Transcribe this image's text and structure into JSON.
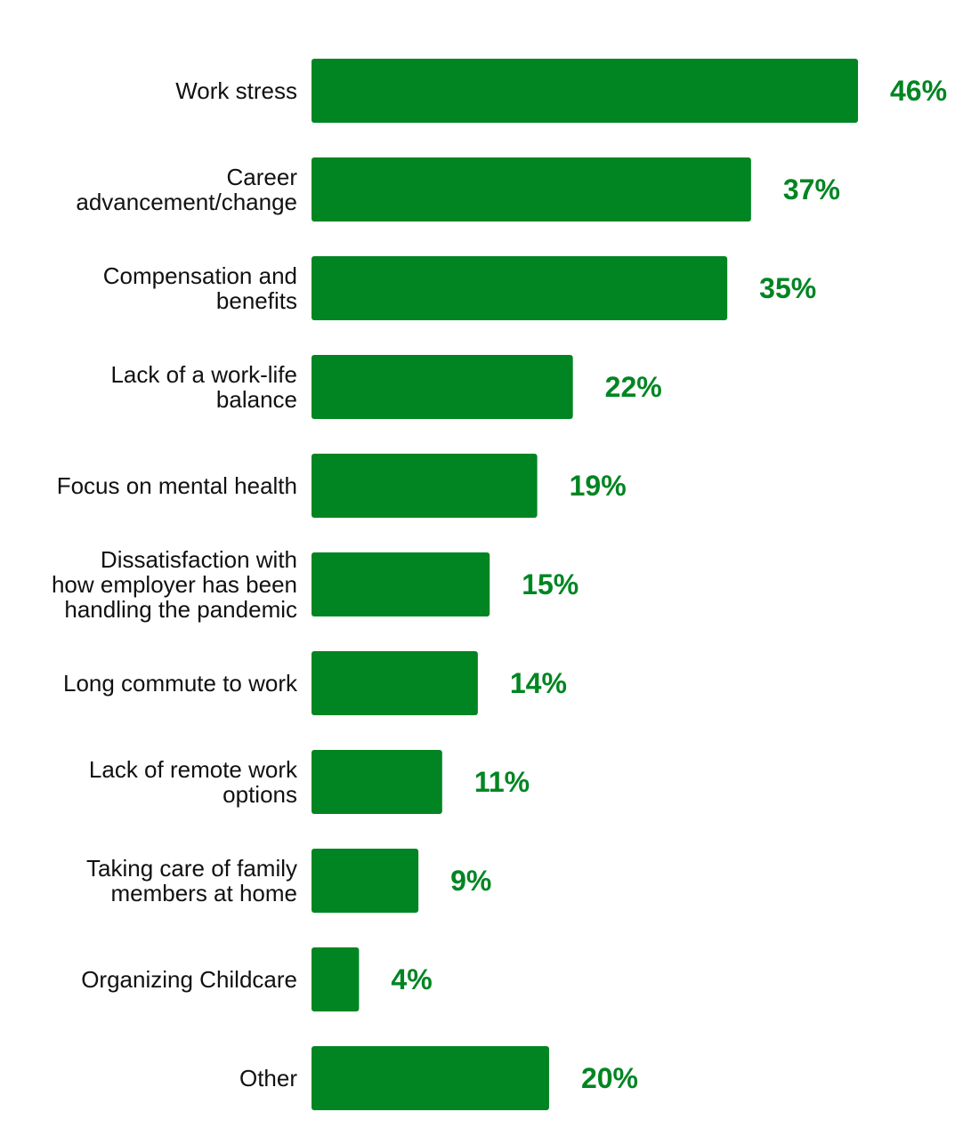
{
  "chart_data": {
    "type": "bar",
    "orientation": "horizontal",
    "categories": [
      "Work stress",
      "Career advancement/change",
      "Compensation and benefits",
      "Lack of a work-life balance",
      "Focus on mental health",
      "Dissatisfaction with how employer has been handling the pandemic",
      "Long commute to work",
      "Lack of remote work options",
      "Taking care of family members at home",
      "Organizing Childcare",
      "Other"
    ],
    "category_lines": [
      [
        "Work stress"
      ],
      [
        "Career",
        "advancement/change"
      ],
      [
        "Compensation and",
        "benefits"
      ],
      [
        "Lack of a work-life",
        "balance"
      ],
      [
        "Focus on mental health"
      ],
      [
        "Dissatisfaction with",
        "how employer has been",
        "handling the pandemic"
      ],
      [
        "Long commute to work"
      ],
      [
        "Lack of remote work",
        "options"
      ],
      [
        "Taking care of family",
        "members at home"
      ],
      [
        "Organizing Childcare"
      ],
      [
        "Other"
      ]
    ],
    "values": [
      46,
      37,
      35,
      22,
      19,
      15,
      14,
      11,
      9,
      4,
      20
    ],
    "value_labels": [
      "46%",
      "37%",
      "35%",
      "22%",
      "19%",
      "15%",
      "14%",
      "11%",
      "9%",
      "4%",
      "20%"
    ],
    "unit": "%",
    "bar_color": "#008522",
    "label_color": "#008522",
    "xlim": [
      0,
      46
    ],
    "grid": false,
    "legend": "none"
  }
}
